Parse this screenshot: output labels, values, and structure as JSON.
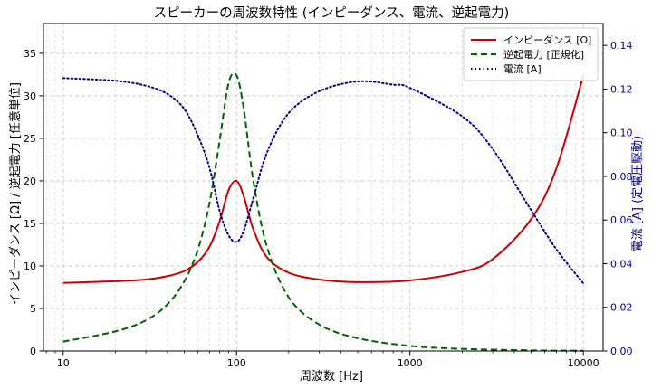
{
  "chart_data": {
    "type": "line",
    "title": "スピーカーの周波数特性 (インピーダンス、電流、逆起電力)",
    "xlabel": "周波数 [Hz]",
    "ylabel_left": "インピーダンス [Ω] / 逆起電力 [任意単位]",
    "ylabel_right": "電流 [A] (定電圧駆動)",
    "x_scale": "log",
    "xlim": [
      7.7,
      13000
    ],
    "ylim_left": [
      0,
      38.5
    ],
    "ylim_right": [
      0,
      0.15
    ],
    "x_ticks": [
      10,
      100,
      1000,
      10000
    ],
    "x_tick_labels": [
      "10",
      "100",
      "1000",
      "10000"
    ],
    "y_left_ticks": [
      0,
      5,
      10,
      15,
      20,
      25,
      30,
      35
    ],
    "y_right_ticks": [
      0.0,
      0.02,
      0.04,
      0.06,
      0.08,
      0.1,
      0.12,
      0.14
    ],
    "y_right_tick_labels": [
      "0.00",
      "0.02",
      "0.04",
      "0.06",
      "0.08",
      "0.10",
      "0.12",
      "0.14"
    ],
    "grid": true,
    "legend_position": "top-right",
    "series": [
      {
        "name": "インピーダンス [Ω]",
        "axis": "left",
        "style": "solid",
        "color": "#cc0000",
        "x": [
          10,
          20,
          30,
          40,
          50,
          60,
          70,
          80,
          90,
          100,
          110,
          125,
          150,
          200,
          300,
          500,
          1000,
          2000,
          3000,
          5000,
          7000,
          10000
        ],
        "y": [
          8.0,
          8.2,
          8.4,
          8.8,
          9.4,
          10.5,
          12.3,
          15.3,
          18.9,
          20.0,
          18.2,
          14.3,
          11.0,
          9.2,
          8.4,
          8.1,
          8.3,
          9.3,
          10.8,
          15.5,
          21.5,
          32.4
        ]
      },
      {
        "name": "逆起電力 [正規化]",
        "axis": "left",
        "style": "dashed",
        "color": "#006400",
        "x": [
          10,
          20,
          30,
          40,
          50,
          60,
          70,
          80,
          90,
          100,
          110,
          125,
          150,
          200,
          300,
          500,
          1000,
          2000,
          5000,
          10000
        ],
        "y": [
          1.1,
          2.3,
          3.6,
          5.5,
          8.2,
          12.0,
          17.5,
          24.8,
          31.5,
          32.4,
          28.5,
          20.0,
          12.2,
          6.3,
          3.1,
          1.5,
          0.6,
          0.25,
          0.07,
          0.03
        ]
      },
      {
        "name": "電流 [A]",
        "axis": "right",
        "style": "dotted",
        "color": "#00008b",
        "x": [
          10,
          20,
          30,
          40,
          50,
          60,
          70,
          80,
          90,
          100,
          110,
          125,
          150,
          200,
          300,
          500,
          800,
          1000,
          2000,
          3000,
          5000,
          7000,
          10000
        ],
        "y": [
          0.125,
          0.1238,
          0.1215,
          0.1177,
          0.1108,
          0.0985,
          0.0837,
          0.064,
          0.053,
          0.05,
          0.055,
          0.07,
          0.091,
          0.109,
          0.119,
          0.1235,
          0.122,
          0.1205,
          0.1075,
          0.0925,
          0.0645,
          0.0465,
          0.031
        ]
      }
    ]
  }
}
